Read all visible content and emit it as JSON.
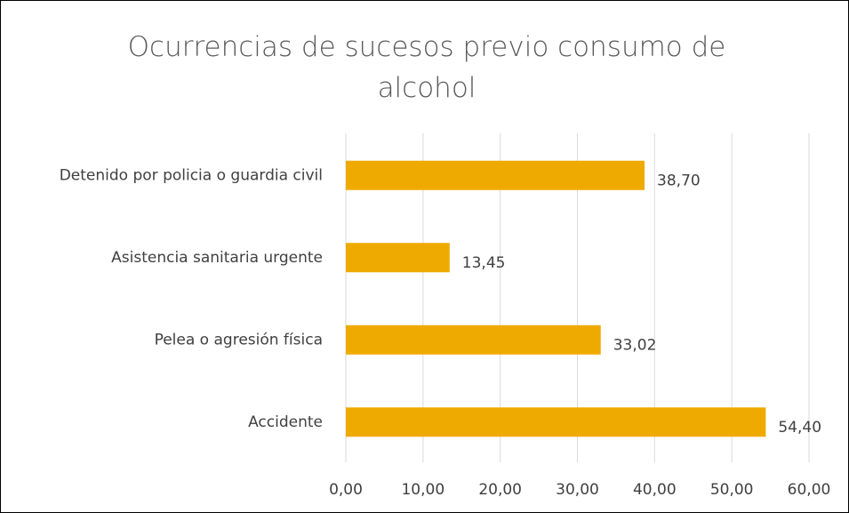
{
  "chart_data": {
    "type": "barh",
    "title": "Ocurrencias de sucesos previo consumo de alcohol",
    "categories": [
      "Detenido por policia o guardia civil",
      "Asistencia sanitaria urgente",
      "Pelea o agresión física",
      "Accidente"
    ],
    "values": [
      38.7,
      13.45,
      33.02,
      54.4
    ],
    "value_labels": [
      "38,70",
      "13,45",
      "33,02",
      "54,40"
    ],
    "color": "#efaa00",
    "xlim": [
      0,
      60
    ],
    "xticks": [
      {
        "value": 0,
        "label": "0,00"
      },
      {
        "value": 10,
        "label": "10,00"
      },
      {
        "value": 20,
        "label": "20,00"
      },
      {
        "value": 30,
        "label": "30,00"
      },
      {
        "value": 40,
        "label": "40,00"
      },
      {
        "value": 50,
        "label": "50,00"
      },
      {
        "value": 60,
        "label": "60,00"
      }
    ],
    "grid": true
  }
}
